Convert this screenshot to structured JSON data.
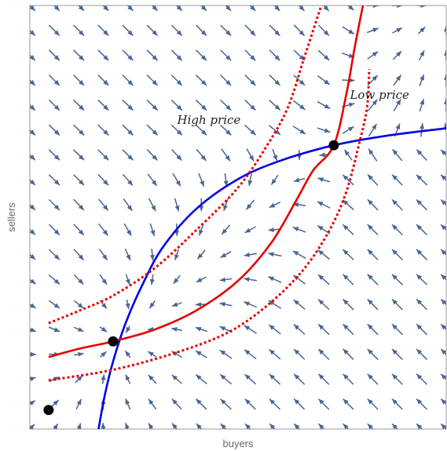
{
  "chart_data": {
    "type": "vector-field-with-curves",
    "title": "",
    "xlabel": "buyers",
    "ylabel": "sellers",
    "xlim": [
      0,
      1
    ],
    "ylim": [
      0,
      1
    ],
    "grid": false,
    "annotations": [
      {
        "text": "High price",
        "x": 0.43,
        "y": 0.72
      },
      {
        "text": "Low price",
        "x": 0.84,
        "y": 0.78
      }
    ],
    "colors": {
      "blue_curve": "#0000e6",
      "red_curve": "#e60000",
      "arrows": "#4a6590",
      "points": "#000000",
      "frame": "#9a9a9a"
    },
    "series": [
      {
        "style": "solid-blue",
        "points": [
          [
            0.165,
            0.0
          ],
          [
            0.18,
            0.08
          ],
          [
            0.2,
            0.16
          ],
          [
            0.23,
            0.25
          ],
          [
            0.27,
            0.34
          ],
          [
            0.32,
            0.43
          ],
          [
            0.4,
            0.52
          ],
          [
            0.5,
            0.59
          ],
          [
            0.6,
            0.633
          ],
          [
            0.73,
            0.67
          ],
          [
            0.86,
            0.693
          ],
          [
            1.0,
            0.71
          ]
        ]
      },
      {
        "style": "solid-red",
        "points": [
          [
            0.045,
            0.17
          ],
          [
            0.12,
            0.19
          ],
          [
            0.2,
            0.207
          ],
          [
            0.3,
            0.235
          ],
          [
            0.4,
            0.28
          ],
          [
            0.5,
            0.35
          ],
          [
            0.58,
            0.44
          ],
          [
            0.64,
            0.54
          ],
          [
            0.68,
            0.61
          ],
          [
            0.73,
            0.67
          ],
          [
            0.76,
            0.79
          ],
          [
            0.78,
            0.9
          ],
          [
            0.8,
            1.0
          ]
        ]
      },
      {
        "style": "dotted-red",
        "points": [
          [
            0.045,
            0.25
          ],
          [
            0.12,
            0.28
          ],
          [
            0.2,
            0.315
          ],
          [
            0.3,
            0.38
          ],
          [
            0.4,
            0.47
          ],
          [
            0.5,
            0.57
          ],
          [
            0.57,
            0.67
          ],
          [
            0.62,
            0.76
          ],
          [
            0.66,
            0.88
          ],
          [
            0.7,
            1.0
          ]
        ]
      },
      {
        "style": "dotted-red",
        "points": [
          [
            0.045,
            0.115
          ],
          [
            0.2,
            0.14
          ],
          [
            0.35,
            0.18
          ],
          [
            0.48,
            0.23
          ],
          [
            0.58,
            0.3
          ],
          [
            0.66,
            0.38
          ],
          [
            0.72,
            0.47
          ],
          [
            0.76,
            0.56
          ],
          [
            0.79,
            0.67
          ],
          [
            0.81,
            0.76
          ],
          [
            0.815,
            0.85
          ]
        ]
      }
    ],
    "markers": [
      {
        "x": 0.045,
        "y": 0.045
      },
      {
        "x": 0.2,
        "y": 0.207
      },
      {
        "x": 0.73,
        "y": 0.67
      }
    ],
    "vector_field": {
      "grid_x": [
        0.0,
        0.0588,
        0.1176,
        0.1765,
        0.2353,
        0.2941,
        0.3529,
        0.4118,
        0.4706,
        0.5294,
        0.5882,
        0.6471,
        0.7059,
        0.7647,
        0.8235,
        0.8824,
        0.9412,
        1.0
      ],
      "grid_y": [
        0.0,
        0.0588,
        0.1176,
        0.1765,
        0.2353,
        0.2941,
        0.3529,
        0.4118,
        0.4706,
        0.5294,
        0.5882,
        0.6471,
        0.7059,
        0.7647,
        0.8235,
        0.8824,
        0.9412,
        1.0
      ]
    }
  }
}
